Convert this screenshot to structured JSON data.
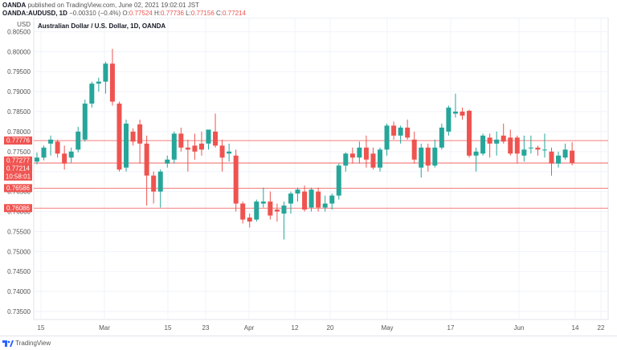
{
  "header": {
    "publisher": "OANDA",
    "published_text": "published on TradingView.com, June 02, 2021 19:02:01 JST",
    "symbol_line": "OANDA:AUDUSD, 1D",
    "change": "−0.00310 (−0.4%)",
    "o_label": "O:",
    "o_value": "0.77524",
    "h_label": "H:",
    "h_value": "0.77736",
    "l_label": "L:",
    "l_value": "0.77156",
    "c_label": "C:",
    "c_value": "0.77214"
  },
  "footer": {
    "brand": "TradingView"
  },
  "colors": {
    "up": "#26a69a",
    "down": "#ef5350",
    "grid": "#f0f3fa",
    "level": "#ef5350"
  },
  "chart_data": {
    "type": "candlestick",
    "title": "Australian Dollar / U.S. Dollar, 1D, OANDA",
    "currency_label": "USD",
    "y_ticks": [
      "0.80500",
      "0.80000",
      "0.79500",
      "0.79000",
      "0.78500",
      "0.78000",
      "0.77500",
      "0.77000",
      "0.76500",
      "0.76000",
      "0.75500",
      "0.75000",
      "0.74500",
      "0.74000",
      "0.73500"
    ],
    "x_labels": [
      "15",
      "Mar",
      "15",
      "23",
      "Apr",
      "12",
      "20",
      "May",
      "17",
      "Jun",
      "14",
      "22"
    ],
    "ylim": [
      0.733,
      0.8085
    ],
    "price_tags": [
      {
        "label": "0.77776",
        "value": 0.77776,
        "line": true
      },
      {
        "label": "0.77277",
        "value": 0.77277,
        "line": false
      },
      {
        "label": "0.77214",
        "value": 0.77214,
        "line": true
      },
      {
        "label": "10:58:01",
        "value": 0.77214,
        "line": false
      },
      {
        "label": "0.76586",
        "value": 0.76586,
        "line": true
      },
      {
        "label": "0.76086",
        "value": 0.76086,
        "line": true
      }
    ],
    "candles": [
      {
        "o": 0.7725,
        "h": 0.7748,
        "l": 0.7718,
        "c": 0.7735
      },
      {
        "o": 0.7735,
        "h": 0.7765,
        "l": 0.7728,
        "c": 0.776
      },
      {
        "o": 0.777,
        "h": 0.779,
        "l": 0.774,
        "c": 0.778
      },
      {
        "o": 0.7775,
        "h": 0.778,
        "l": 0.7735,
        "c": 0.7745
      },
      {
        "o": 0.7745,
        "h": 0.7765,
        "l": 0.7705,
        "c": 0.772
      },
      {
        "o": 0.7735,
        "h": 0.776,
        "l": 0.7722,
        "c": 0.775
      },
      {
        "o": 0.7755,
        "h": 0.7812,
        "l": 0.7748,
        "c": 0.78
      },
      {
        "o": 0.778,
        "h": 0.788,
        "l": 0.7775,
        "c": 0.787
      },
      {
        "o": 0.787,
        "h": 0.7925,
        "l": 0.786,
        "c": 0.792
      },
      {
        "o": 0.792,
        "h": 0.7935,
        "l": 0.79,
        "c": 0.7925
      },
      {
        "o": 0.7925,
        "h": 0.7975,
        "l": 0.7895,
        "c": 0.797
      },
      {
        "o": 0.797,
        "h": 0.8007,
        "l": 0.7865,
        "c": 0.7875
      },
      {
        "o": 0.787,
        "h": 0.7875,
        "l": 0.77,
        "c": 0.7705
      },
      {
        "o": 0.771,
        "h": 0.783,
        "l": 0.77,
        "c": 0.782
      },
      {
        "o": 0.78,
        "h": 0.7808,
        "l": 0.7765,
        "c": 0.7775
      },
      {
        "o": 0.7818,
        "h": 0.783,
        "l": 0.772,
        "c": 0.777
      },
      {
        "o": 0.777,
        "h": 0.779,
        "l": 0.7615,
        "c": 0.769
      },
      {
        "o": 0.769,
        "h": 0.77,
        "l": 0.762,
        "c": 0.765
      },
      {
        "o": 0.765,
        "h": 0.7705,
        "l": 0.761,
        "c": 0.77
      },
      {
        "o": 0.772,
        "h": 0.774,
        "l": 0.771,
        "c": 0.773
      },
      {
        "o": 0.773,
        "h": 0.78,
        "l": 0.772,
        "c": 0.7795
      },
      {
        "o": 0.7795,
        "h": 0.781,
        "l": 0.775,
        "c": 0.776
      },
      {
        "o": 0.776,
        "h": 0.778,
        "l": 0.77,
        "c": 0.7755
      },
      {
        "o": 0.7765,
        "h": 0.7795,
        "l": 0.773,
        "c": 0.775
      },
      {
        "o": 0.777,
        "h": 0.78,
        "l": 0.774,
        "c": 0.7755
      },
      {
        "o": 0.777,
        "h": 0.7805,
        "l": 0.7755,
        "c": 0.7805
      },
      {
        "o": 0.78,
        "h": 0.7845,
        "l": 0.776,
        "c": 0.7765
      },
      {
        "o": 0.7765,
        "h": 0.778,
        "l": 0.77,
        "c": 0.7735
      },
      {
        "o": 0.7745,
        "h": 0.777,
        "l": 0.7725,
        "c": 0.775
      },
      {
        "o": 0.774,
        "h": 0.7755,
        "l": 0.76,
        "c": 0.762
      },
      {
        "o": 0.762,
        "h": 0.7625,
        "l": 0.757,
        "c": 0.758
      },
      {
        "o": 0.7585,
        "h": 0.7595,
        "l": 0.756,
        "c": 0.7575
      },
      {
        "o": 0.758,
        "h": 0.763,
        "l": 0.7575,
        "c": 0.7625
      },
      {
        "o": 0.762,
        "h": 0.766,
        "l": 0.761,
        "c": 0.7625
      },
      {
        "o": 0.7625,
        "h": 0.765,
        "l": 0.758,
        "c": 0.759
      },
      {
        "o": 0.7605,
        "h": 0.762,
        "l": 0.7575,
        "c": 0.76
      },
      {
        "o": 0.7595,
        "h": 0.7625,
        "l": 0.753,
        "c": 0.7615
      },
      {
        "o": 0.762,
        "h": 0.765,
        "l": 0.7595,
        "c": 0.7645
      },
      {
        "o": 0.7645,
        "h": 0.766,
        "l": 0.7625,
        "c": 0.7655
      },
      {
        "o": 0.765,
        "h": 0.7665,
        "l": 0.76,
        "c": 0.7605
      },
      {
        "o": 0.761,
        "h": 0.766,
        "l": 0.76,
        "c": 0.7655
      },
      {
        "o": 0.765,
        "h": 0.766,
        "l": 0.76,
        "c": 0.761
      },
      {
        "o": 0.761,
        "h": 0.764,
        "l": 0.76,
        "c": 0.762
      },
      {
        "o": 0.762,
        "h": 0.7645,
        "l": 0.7605,
        "c": 0.764
      },
      {
        "o": 0.764,
        "h": 0.772,
        "l": 0.763,
        "c": 0.7715
      },
      {
        "o": 0.7715,
        "h": 0.7748,
        "l": 0.77,
        "c": 0.7745
      },
      {
        "o": 0.7745,
        "h": 0.776,
        "l": 0.772,
        "c": 0.7735
      },
      {
        "o": 0.7735,
        "h": 0.7775,
        "l": 0.772,
        "c": 0.776
      },
      {
        "o": 0.776,
        "h": 0.779,
        "l": 0.771,
        "c": 0.773
      },
      {
        "o": 0.7745,
        "h": 0.776,
        "l": 0.7705,
        "c": 0.771
      },
      {
        "o": 0.771,
        "h": 0.776,
        "l": 0.77,
        "c": 0.7755
      },
      {
        "o": 0.7755,
        "h": 0.782,
        "l": 0.774,
        "c": 0.7815
      },
      {
        "o": 0.7815,
        "h": 0.7825,
        "l": 0.778,
        "c": 0.779
      },
      {
        "o": 0.779,
        "h": 0.7815,
        "l": 0.777,
        "c": 0.781
      },
      {
        "o": 0.781,
        "h": 0.783,
        "l": 0.778,
        "c": 0.7785
      },
      {
        "o": 0.778,
        "h": 0.78,
        "l": 0.772,
        "c": 0.773
      },
      {
        "o": 0.771,
        "h": 0.777,
        "l": 0.7685,
        "c": 0.776
      },
      {
        "o": 0.776,
        "h": 0.777,
        "l": 0.77,
        "c": 0.7715
      },
      {
        "o": 0.7715,
        "h": 0.778,
        "l": 0.771,
        "c": 0.776
      },
      {
        "o": 0.776,
        "h": 0.782,
        "l": 0.7755,
        "c": 0.781
      },
      {
        "o": 0.78,
        "h": 0.7865,
        "l": 0.779,
        "c": 0.786
      },
      {
        "o": 0.7845,
        "h": 0.7895,
        "l": 0.7835,
        "c": 0.785
      },
      {
        "o": 0.785,
        "h": 0.786,
        "l": 0.783,
        "c": 0.784
      },
      {
        "o": 0.7852,
        "h": 0.7855,
        "l": 0.7735,
        "c": 0.774
      },
      {
        "o": 0.774,
        "h": 0.776,
        "l": 0.77,
        "c": 0.775
      },
      {
        "o": 0.7745,
        "h": 0.7795,
        "l": 0.774,
        "c": 0.779
      },
      {
        "o": 0.7785,
        "h": 0.7795,
        "l": 0.7735,
        "c": 0.777
      },
      {
        "o": 0.777,
        "h": 0.78,
        "l": 0.774,
        "c": 0.778
      },
      {
        "o": 0.779,
        "h": 0.782,
        "l": 0.777,
        "c": 0.7775
      },
      {
        "o": 0.7785,
        "h": 0.7805,
        "l": 0.774,
        "c": 0.7745
      },
      {
        "o": 0.7785,
        "h": 0.779,
        "l": 0.772,
        "c": 0.7745
      },
      {
        "o": 0.774,
        "h": 0.779,
        "l": 0.7725,
        "c": 0.7755
      },
      {
        "o": 0.776,
        "h": 0.779,
        "l": 0.7745,
        "c": 0.776
      },
      {
        "o": 0.776,
        "h": 0.7765,
        "l": 0.774,
        "c": 0.7755
      },
      {
        "o": 0.7755,
        "h": 0.7795,
        "l": 0.7735,
        "c": 0.7755
      },
      {
        "o": 0.775,
        "h": 0.776,
        "l": 0.769,
        "c": 0.772
      },
      {
        "o": 0.772,
        "h": 0.775,
        "l": 0.771,
        "c": 0.774
      },
      {
        "o": 0.7735,
        "h": 0.777,
        "l": 0.773,
        "c": 0.7755
      },
      {
        "o": 0.77524,
        "h": 0.77736,
        "l": 0.77156,
        "c": 0.77214
      }
    ]
  }
}
